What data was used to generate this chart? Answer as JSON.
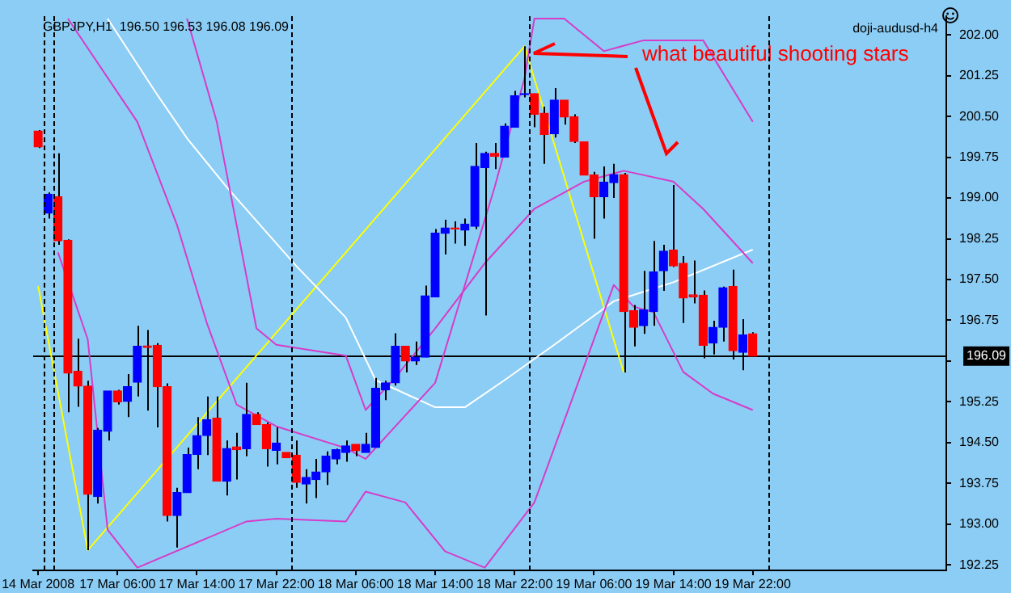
{
  "chart_data": {
    "type": "candlestick",
    "title": "GBPJPY,H1  196.50 196.53 196.08 196.09",
    "annotations": [
      "doji-audusd-h4",
      "what beautiful shooting stars"
    ],
    "categories": [
      "14 Mar 2008",
      null,
      null,
      null,
      null,
      null,
      null,
      null,
      "17 Mar 06:00",
      null,
      null,
      null,
      null,
      null,
      null,
      null,
      "17 Mar 14:00",
      null,
      null,
      null,
      null,
      null,
      null,
      null,
      "17 Mar 22:00",
      null,
      null,
      null,
      null,
      null,
      null,
      null,
      "18 Mar 06:00",
      null,
      null,
      null,
      null,
      null,
      null,
      null,
      "18 Mar 14:00",
      null,
      null,
      null,
      null,
      null,
      null,
      null,
      "18 Mar 22:00",
      null,
      null,
      null,
      null,
      null,
      null,
      null,
      "19 Mar 06:00",
      null,
      null,
      null,
      null,
      null,
      null,
      null,
      "19 Mar 14:00",
      null,
      null,
      null,
      null,
      null,
      null,
      null,
      "19 Mar 22:00",
      null,
      null,
      null,
      null,
      null,
      null,
      null,
      null,
      null,
      null,
      null,
      null,
      null,
      null,
      null,
      null,
      null,
      null,
      null
    ],
    "ohlc": [
      [
        200.23,
        200.25,
        199.92,
        199.94
      ],
      [
        198.72,
        199.1,
        198.62,
        199.07
      ],
      [
        199.02,
        199.82,
        198.14,
        198.21
      ],
      [
        198.22,
        198.24,
        195.06,
        195.78
      ],
      [
        195.81,
        196.41,
        195.16,
        195.54
      ],
      [
        195.54,
        195.64,
        192.52,
        193.55
      ],
      [
        193.51,
        194.77,
        193.38,
        194.73
      ],
      [
        194.71,
        195.45,
        194.54,
        195.45
      ],
      [
        195.45,
        195.47,
        195.2,
        195.25
      ],
      [
        195.26,
        195.76,
        194.97,
        195.53
      ],
      [
        195.61,
        196.65,
        195.35,
        196.27
      ],
      [
        196.28,
        196.57,
        195.09,
        196.25
      ],
      [
        196.29,
        196.33,
        194.78,
        195.53
      ],
      [
        195.53,
        195.59,
        193.05,
        193.16
      ],
      [
        193.16,
        193.67,
        192.57,
        193.58
      ],
      [
        193.58,
        194.41,
        193.58,
        194.28
      ],
      [
        194.28,
        194.97,
        194.01,
        194.63
      ],
      [
        194.63,
        195.35,
        194.27,
        194.92
      ],
      [
        194.95,
        195.35,
        193.79,
        193.79
      ],
      [
        193.79,
        194.54,
        193.53,
        194.39
      ],
      [
        194.42,
        194.68,
        193.82,
        194.37
      ],
      [
        194.39,
        195.6,
        194.25,
        195.02
      ],
      [
        195.02,
        195.06,
        194.83,
        194.83
      ],
      [
        194.83,
        194.87,
        194.06,
        194.39
      ],
      [
        194.36,
        194.78,
        194.1,
        194.49
      ],
      [
        194.32,
        194.32,
        194.22,
        194.22
      ],
      [
        194.27,
        194.54,
        193.67,
        193.77
      ],
      [
        193.74,
        194.01,
        193.38,
        193.86
      ],
      [
        193.82,
        194.2,
        193.48,
        193.96
      ],
      [
        193.96,
        194.34,
        193.72,
        194.25
      ],
      [
        194.2,
        194.39,
        194.1,
        194.37
      ],
      [
        194.32,
        194.54,
        194.15,
        194.44
      ],
      [
        194.47,
        194.47,
        194.25,
        194.35
      ],
      [
        194.32,
        194.68,
        194.32,
        194.47
      ],
      [
        194.41,
        195.69,
        194.41,
        195.5
      ],
      [
        195.47,
        195.64,
        195.28,
        195.6
      ],
      [
        195.6,
        196.51,
        195.55,
        196.27
      ],
      [
        196.27,
        196.27,
        195.79,
        196.0
      ],
      [
        196.0,
        196.36,
        195.93,
        196.07
      ],
      [
        196.07,
        197.39,
        196.07,
        197.2
      ],
      [
        197.18,
        198.43,
        197.18,
        198.35
      ],
      [
        198.35,
        198.6,
        197.96,
        198.45
      ],
      [
        198.45,
        198.57,
        198.16,
        198.43
      ],
      [
        198.41,
        198.62,
        198.12,
        198.52
      ],
      [
        198.48,
        200.01,
        198.43,
        199.58
      ],
      [
        199.56,
        199.85,
        196.84,
        199.82
      ],
      [
        199.82,
        200.01,
        199.53,
        199.77
      ],
      [
        199.75,
        200.37,
        199.75,
        200.32
      ],
      [
        200.3,
        200.97,
        200.3,
        200.88
      ],
      [
        200.9,
        201.79,
        200.85,
        200.92
      ],
      [
        200.92,
        200.92,
        200.3,
        200.54
      ],
      [
        200.56,
        200.68,
        199.63,
        200.17
      ],
      [
        200.18,
        201.02,
        200.11,
        200.8
      ],
      [
        200.8,
        200.8,
        200.35,
        200.49
      ],
      [
        200.49,
        200.54,
        200.01,
        200.04
      ],
      [
        200.03,
        200.03,
        199.42,
        199.42
      ],
      [
        199.42,
        199.48,
        198.25,
        199.02
      ],
      [
        199.02,
        199.58,
        198.62,
        199.29
      ],
      [
        199.28,
        199.63,
        199.0,
        199.43
      ],
      [
        199.43,
        199.46,
        195.79,
        196.91
      ],
      [
        196.93,
        197.03,
        196.27,
        196.62
      ],
      [
        196.65,
        197.66,
        196.5,
        196.94
      ],
      [
        196.91,
        198.21,
        196.65,
        197.64
      ],
      [
        197.66,
        198.14,
        197.29,
        198.02
      ],
      [
        198.04,
        199.24,
        197.73,
        197.75
      ],
      [
        197.8,
        197.93,
        196.7,
        197.16
      ],
      [
        197.22,
        197.85,
        197.06,
        197.18
      ],
      [
        197.21,
        197.3,
        196.05,
        196.29
      ],
      [
        196.33,
        196.74,
        196.12,
        196.62
      ],
      [
        196.62,
        197.37,
        196.36,
        197.35
      ],
      [
        197.37,
        197.68,
        196.03,
        196.19
      ],
      [
        196.16,
        196.77,
        195.83,
        196.48
      ],
      [
        196.5,
        196.53,
        196.08,
        196.09
      ],
      null,
      null,
      null,
      null,
      null,
      null,
      null,
      null,
      null,
      null,
      null,
      null,
      null,
      null,
      null,
      null,
      null,
      null,
      null
    ],
    "colors": [
      "#ff0000",
      "#0000ff",
      "#ff0000",
      "#ff0000",
      "#ff0000",
      "#ff0000",
      "#0000ff",
      "#0000ff",
      "#ff0000",
      "#0000ff",
      "#0000ff",
      "#ff0000",
      "#ff0000",
      "#ff0000",
      "#0000ff",
      "#0000ff",
      "#0000ff",
      "#0000ff",
      "#ff0000",
      "#0000ff",
      "#ff0000",
      "#0000ff",
      "#ff0000",
      "#ff0000",
      "#0000ff",
      "#ff0000",
      "#ff0000",
      "#0000ff",
      "#0000ff",
      "#0000ff",
      "#0000ff",
      "#0000ff",
      "#ff0000",
      "#0000ff",
      "#0000ff",
      "#0000ff",
      "#0000ff",
      "#ff0000",
      "#0000ff",
      "#0000ff",
      "#0000ff",
      "#0000ff",
      "#ff0000",
      "#0000ff",
      "#0000ff",
      "#0000ff",
      "#ff0000",
      "#0000ff",
      "#0000ff",
      "#0000ff",
      "#ff0000",
      "#ff0000",
      "#0000ff",
      "#ff0000",
      "#ff0000",
      "#ff0000",
      "#ff0000",
      "#0000ff",
      "#0000ff",
      "#ff0000",
      "#ff0000",
      "#0000ff",
      "#0000ff",
      "#0000ff",
      "#ff0000",
      "#ff0000",
      "#ff0000",
      "#ff0000",
      "#0000ff",
      "#0000ff",
      "#ff0000",
      "#0000ff",
      "#ff0000",
      null,
      null,
      null,
      null,
      null,
      null,
      null,
      null,
      null,
      null,
      null,
      null,
      null,
      null,
      null,
      null,
      null,
      null,
      null
    ],
    "series": [
      {
        "type": "line",
        "color": "#d63cc8",
        "values": [
          null,
          null,
          null,
          202.3,
          null,
          null,
          null,
          null,
          null,
          null,
          200.4,
          null,
          null,
          null,
          198.5,
          null,
          null,
          196.7,
          null,
          null,
          195.2,
          null,
          null,
          null,
          194.8,
          null,
          null,
          null,
          null,
          null,
          null,
          194.4,
          null,
          194.2,
          null,
          null,
          194.8,
          null,
          null,
          null,
          195.6,
          null,
          null,
          197.4,
          null,
          null,
          199.2,
          null,
          null,
          201.2,
          202.3,
          null,
          null,
          202.3,
          null,
          null,
          null,
          201.7,
          null,
          null,
          null,
          201.9,
          null,
          null,
          null,
          null,
          null,
          201.9,
          null,
          null,
          null,
          null,
          200.4,
          null,
          null,
          null,
          null,
          null,
          null,
          null,
          null,
          null,
          null,
          null,
          null,
          null,
          null,
          null,
          null,
          null,
          null,
          null
        ]
      },
      {
        "type": "line",
        "color": "#d63cc8",
        "values": [
          null,
          null,
          null,
          null,
          null,
          null,
          null,
          null,
          null,
          null,
          null,
          null,
          null,
          null,
          null,
          202.3,
          null,
          null,
          200.4,
          null,
          198.5,
          null,
          196.6,
          null,
          196.3,
          null,
          null,
          null,
          null,
          null,
          null,
          196.1,
          null,
          195.1,
          null,
          null,
          195.7,
          null,
          null,
          null,
          196.6,
          null,
          null,
          null,
          null,
          197.8,
          null,
          null,
          null,
          null,
          198.8,
          null,
          null,
          null,
          null,
          199.3,
          null,
          null,
          null,
          199.5,
          null,
          null,
          null,
          null,
          199.3,
          null,
          null,
          198.8,
          null,
          null,
          null,
          null,
          197.8,
          null,
          null,
          null,
          null,
          null,
          null,
          null,
          null,
          null,
          null,
          null,
          null,
          null,
          null,
          null,
          null,
          null,
          null,
          null
        ]
      },
      {
        "type": "line",
        "color": "#d63cc8",
        "values": [
          null,
          null,
          198.0,
          null,
          null,
          196.4,
          null,
          192.9,
          null,
          null,
          192.2,
          null,
          null,
          null,
          null,
          null,
          null,
          null,
          null,
          null,
          null,
          193.05,
          null,
          null,
          193.1,
          null,
          null,
          null,
          null,
          null,
          null,
          193.05,
          null,
          193.6,
          null,
          null,
          null,
          193.4,
          null,
          null,
          null,
          192.5,
          null,
          null,
          null,
          192.2,
          null,
          null,
          null,
          null,
          193.4,
          null,
          null,
          null,
          195.4,
          null,
          null,
          null,
          197.4,
          null,
          197.0,
          null,
          196.9,
          null,
          null,
          195.8,
          null,
          null,
          195.4,
          null,
          null,
          null,
          195.1,
          null,
          null,
          null,
          null,
          null,
          null,
          null,
          null,
          null,
          null,
          null,
          null,
          null,
          null,
          null,
          null,
          null,
          null,
          null
        ]
      },
      {
        "type": "line",
        "color": "#ffffff",
        "values": [
          null,
          null,
          null,
          null,
          null,
          null,
          null,
          202.3,
          null,
          null,
          null,
          null,
          200.9,
          null,
          null,
          200.1,
          null,
          null,
          null,
          199.2,
          null,
          null,
          null,
          null,
          null,
          null,
          197.75,
          null,
          null,
          null,
          null,
          196.8,
          null,
          null,
          195.65,
          null,
          null,
          null,
          null,
          null,
          195.15,
          null,
          null,
          195.15,
          null,
          null,
          null,
          195.65,
          null,
          null,
          null,
          null,
          196.3,
          null,
          null,
          196.7,
          null,
          null,
          197.1,
          null,
          null,
          null,
          null,
          null,
          197.45,
          null,
          null,
          null,
          null,
          null,
          null,
          null,
          198.05,
          null,
          null,
          null,
          null,
          null,
          null,
          null,
          null,
          null,
          null,
          null,
          null,
          null,
          null,
          null,
          null,
          null,
          null,
          null
        ]
      },
      {
        "type": "line",
        "color": "#ffff00",
        "values": [
          197.38,
          null,
          null,
          null,
          null,
          192.52,
          null,
          null,
          null,
          null,
          null,
          null,
          null,
          null,
          null,
          null,
          null,
          null,
          null,
          null,
          null,
          null,
          null,
          null,
          null,
          null,
          null,
          null,
          null,
          null,
          null,
          null,
          null,
          null,
          null,
          null,
          null,
          null,
          null,
          null,
          null,
          null,
          null,
          null,
          null,
          null,
          null,
          null,
          null,
          201.79,
          null,
          null,
          null,
          null,
          null,
          null,
          null,
          null,
          null,
          195.79,
          null,
          null,
          null,
          null,
          null,
          null,
          null,
          null,
          null,
          null,
          null,
          null,
          null,
          null,
          null,
          null,
          null,
          null,
          null,
          null,
          null,
          null,
          null,
          null,
          null,
          null,
          null,
          null,
          null,
          null,
          null,
          null
        ]
      }
    ],
    "ylim": [
      192.15,
      202.35
    ],
    "yticks": [
      {
        "value": 202,
        "label": "202.00"
      },
      201.25,
      {
        "value": 200.5,
        "label": "200.50"
      },
      199.75,
      {
        "value": 199,
        "label": "199.00"
      },
      198.25,
      {
        "value": 197.5,
        "label": "197.50"
      },
      196.75,
      {
        "value": 196,
        "label": null
      },
      195.25,
      {
        "value": 194.5,
        "label": "194.50"
      },
      193.75,
      {
        "value": 193,
        "label": "193.00"
      },
      192.25
    ],
    "ref_lines": [
      {
        "axis": "y",
        "value": 196.09,
        "label": "196.09",
        "color": "#000000",
        "line_style": "solid"
      }
    ],
    "grid": false,
    "legend": false,
    "marker": "none",
    "line_style": "solid"
  }
}
